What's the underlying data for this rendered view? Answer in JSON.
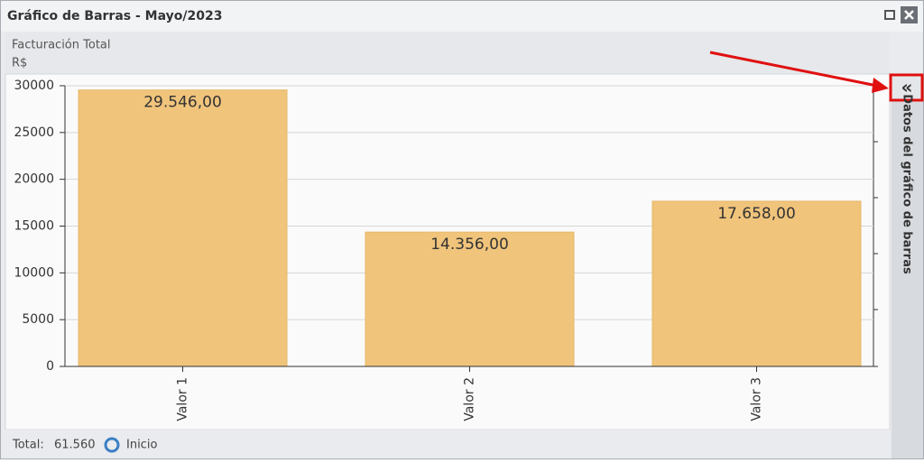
{
  "window": {
    "title": "Gráfico de Barras - Mayo/2023"
  },
  "chart_data": {
    "type": "bar",
    "title": "Facturación Total",
    "ylabel": "R$",
    "categories": [
      "Valor 1",
      "Valor 2",
      "Valor 3"
    ],
    "values": [
      29546,
      14356,
      17658
    ],
    "value_labels": [
      "29.546,00",
      "14.356,00",
      "17.658,00"
    ],
    "color": "#f0c47b",
    "ylim": [
      0,
      30000
    ],
    "yticks": [
      0,
      5000,
      10000,
      15000,
      20000,
      25000,
      30000
    ],
    "grid": true
  },
  "side_panel": {
    "button": "«",
    "label": "Datos del gráfico de barras"
  },
  "footer": {
    "total_label": "Total:",
    "total": "61.560",
    "home": "Inicio"
  }
}
